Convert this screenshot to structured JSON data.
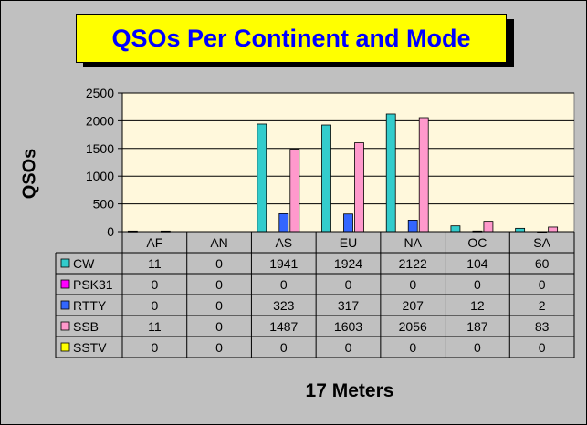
{
  "chart_data": {
    "type": "bar",
    "title": "QSOs Per Continent and Mode",
    "ylabel": "QSOs",
    "xlabel": "17 Meters",
    "categories": [
      "AF",
      "AN",
      "AS",
      "EU",
      "NA",
      "OC",
      "SA"
    ],
    "ylim": [
      0,
      2500
    ],
    "yticks": [
      0,
      500,
      1000,
      1500,
      2000,
      2500
    ],
    "grid": true,
    "legend": "data-table",
    "series": [
      {
        "name": "CW",
        "color": "#33cccc",
        "values": [
          11,
          0,
          1941,
          1924,
          2122,
          104,
          60
        ]
      },
      {
        "name": "PSK31",
        "color": "#ff00ff",
        "values": [
          0,
          0,
          0,
          0,
          0,
          0,
          0
        ]
      },
      {
        "name": "RTTY",
        "color": "#3366ff",
        "values": [
          0,
          0,
          323,
          317,
          207,
          12,
          2
        ]
      },
      {
        "name": "SSB",
        "color": "#ff99cc",
        "values": [
          11,
          0,
          1487,
          1603,
          2056,
          187,
          83
        ]
      },
      {
        "name": "SSTV",
        "color": "#ffff00",
        "values": [
          0,
          0,
          0,
          0,
          0,
          0,
          0
        ]
      }
    ]
  },
  "colors": {
    "plot_background": "#fff8dc",
    "chart_background": "#c0c0c0",
    "title_background": "#ffff00",
    "title_text": "#0000ff"
  }
}
